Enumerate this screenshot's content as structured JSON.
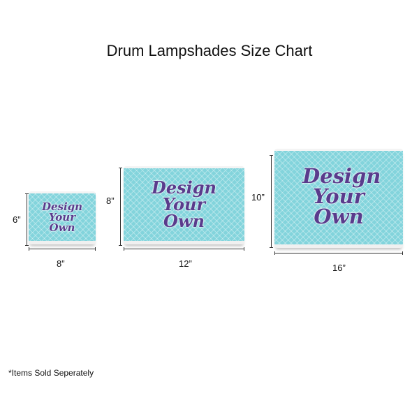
{
  "title": "Drum Lampshades Size Chart",
  "shade_text": "Design Your Own",
  "colors": {
    "shade": "#83d4dc",
    "text": "#5a3b8c"
  },
  "sizes": [
    {
      "height": "6”",
      "width": "8”"
    },
    {
      "height": "8”",
      "width": "12”"
    },
    {
      "height": "10”",
      "width": "16”"
    }
  ],
  "footnote": "*Items Sold Seperately"
}
